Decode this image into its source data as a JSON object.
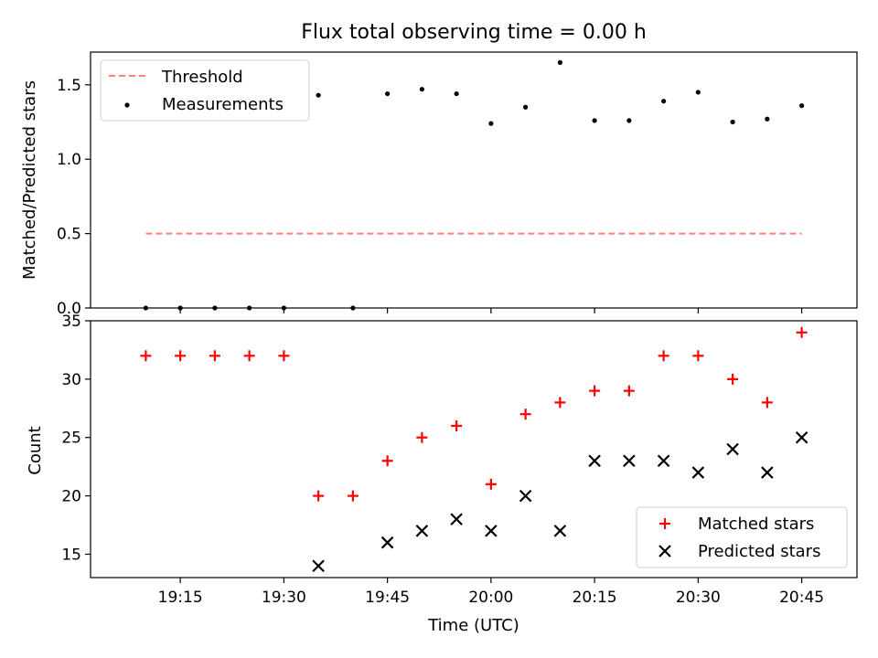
{
  "chart_data": [
    {
      "type": "scatter",
      "title": "Flux total observing time = 0.00 h",
      "xlabel": "",
      "ylabel": "Matched/Predicted stars",
      "x": [
        "19:10",
        "19:15",
        "19:20",
        "19:25",
        "19:30",
        "19:35",
        "19:40",
        "19:45",
        "19:50",
        "19:55",
        "20:00",
        "20:05",
        "20:10",
        "20:15",
        "20:20",
        "20:25",
        "20:30",
        "20:35",
        "20:40",
        "20:45"
      ],
      "series": [
        {
          "name": "Measurements",
          "values": [
            0,
            0,
            0,
            0,
            0,
            1.43,
            0,
            1.44,
            1.47,
            1.44,
            1.24,
            1.35,
            1.65,
            1.26,
            1.26,
            1.39,
            1.45,
            1.25,
            1.27,
            1.36
          ]
        },
        {
          "name": "Threshold",
          "values": [
            0.5,
            0.5,
            0.5,
            0.5,
            0.5,
            0.5,
            0.5,
            0.5,
            0.5,
            0.5,
            0.5,
            0.5,
            0.5,
            0.5,
            0.5,
            0.5,
            0.5,
            0.5,
            0.5,
            0.5
          ]
        }
      ],
      "ylim": [
        0,
        1.72
      ],
      "yticks": [
        "0.0",
        "0.5",
        "1.0",
        "1.5"
      ],
      "legend": "top-left",
      "colors": {
        "threshold": "#ff7f7f",
        "measurements": "#000000"
      }
    },
    {
      "type": "scatter",
      "xlabel": "Time (UTC)",
      "ylabel": "Count",
      "x": [
        "19:10",
        "19:15",
        "19:20",
        "19:25",
        "19:30",
        "19:35",
        "19:40",
        "19:45",
        "19:50",
        "19:55",
        "20:00",
        "20:05",
        "20:10",
        "20:15",
        "20:20",
        "20:25",
        "20:30",
        "20:35",
        "20:40",
        "20:45"
      ],
      "xticks": [
        "19:15",
        "19:30",
        "19:45",
        "20:00",
        "20:15",
        "20:30",
        "20:45"
      ],
      "series": [
        {
          "name": "Matched stars",
          "values": [
            32,
            32,
            32,
            32,
            32,
            20,
            20,
            23,
            25,
            26,
            21,
            27,
            28,
            29,
            29,
            32,
            32,
            30,
            28,
            34
          ]
        },
        {
          "name": "Predicted stars",
          "values": [
            null,
            null,
            null,
            null,
            null,
            14,
            null,
            16,
            17,
            18,
            17,
            20,
            17,
            23,
            23,
            23,
            22,
            24,
            22,
            25
          ]
        }
      ],
      "ylim": [
        13,
        35
      ],
      "yticks": [
        "15",
        "20",
        "25",
        "30",
        "35"
      ],
      "legend": "bottom-right",
      "colors": {
        "matched": "#ff0000",
        "predicted": "#000000"
      }
    }
  ]
}
